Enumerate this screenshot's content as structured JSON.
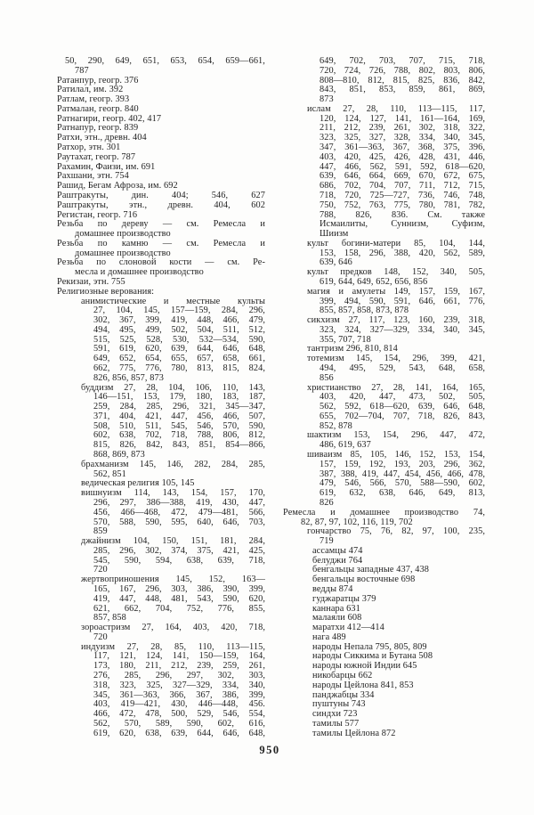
{
  "page_number": "950",
  "index": {
    "columns": [
      {
        "side": "left",
        "lines": [
          {
            "i": 5,
            "j": true,
            "t": "50, 290, 649, 651, 653, 654, 659—661,"
          },
          {
            "i": 1,
            "j": false,
            "t": "787"
          },
          {
            "i": 0,
            "j": false,
            "t": "Ратанпур, геогр. 376"
          },
          {
            "i": 0,
            "j": false,
            "t": "Ратилал, им. 392"
          },
          {
            "i": 0,
            "j": false,
            "t": "Ратлам, геогр. 393"
          },
          {
            "i": 0,
            "j": false,
            "t": "Ратмалан, геогр. 840"
          },
          {
            "i": 0,
            "j": false,
            "t": "Ратнагири, геогр. 402, 417"
          },
          {
            "i": 0,
            "j": false,
            "t": "Ратнапур, геогр. 839"
          },
          {
            "i": 0,
            "j": false,
            "t": "Ратхи, этн., древн. 404"
          },
          {
            "i": 0,
            "j": false,
            "t": "Ратхор, этн. 301"
          },
          {
            "i": 0,
            "j": false,
            "t": "Раутахат, геогр. 787"
          },
          {
            "i": 0,
            "j": false,
            "t": "Рахамин, Фаизи, им. 691"
          },
          {
            "i": 0,
            "j": false,
            "t": "Рахшани, этн. 754"
          },
          {
            "i": 0,
            "j": false,
            "t": "Рашид, Бегам Афроза, им. 692"
          },
          {
            "i": 0,
            "j": true,
            "t": "Раштракуты, дин. 404; 546, 627"
          },
          {
            "i": 0,
            "j": true,
            "t": "Раштракуты, этн., древн. 404, 602"
          },
          {
            "i": 0,
            "j": false,
            "t": "Регистан, геогр. 716"
          },
          {
            "i": 0,
            "j": true,
            "t": "Резьба по дереву — см. Ремесла и"
          },
          {
            "i": 1,
            "j": false,
            "t": "домашнее производство"
          },
          {
            "i": 0,
            "j": true,
            "t": "Резьба по камню — см. Ремесла и"
          },
          {
            "i": 1,
            "j": false,
            "t": "домашнее производство"
          },
          {
            "i": 0,
            "j": true,
            "t": "Резьба по слоновой кости — см. Ре-"
          },
          {
            "i": 1,
            "j": false,
            "t": "месла и домашнее производство"
          },
          {
            "i": 0,
            "j": false,
            "t": "Рекизаи, этн. 755"
          },
          {
            "i": 0,
            "j": false,
            "t": "Религиозные верования:"
          },
          {
            "i": 2,
            "j": true,
            "t": "анимистические и местные культы"
          },
          {
            "i": 3,
            "j": true,
            "t": "27, 104, 145, 157—159, 284, 296,"
          },
          {
            "i": 3,
            "j": true,
            "t": "302, 367, 399, 419, 448, 466, 479,"
          },
          {
            "i": 3,
            "j": true,
            "t": "494, 495, 499, 502, 504, 511, 512,"
          },
          {
            "i": 3,
            "j": true,
            "t": "515, 525, 528, 530, 532—534, 590,"
          },
          {
            "i": 3,
            "j": true,
            "t": "591, 619, 620, 639, 644, 646, 648,"
          },
          {
            "i": 3,
            "j": true,
            "t": "649, 652, 654, 655, 657, 658, 661,"
          },
          {
            "i": 3,
            "j": true,
            "t": "662, 775, 776, 780, 813, 815, 824,"
          },
          {
            "i": 3,
            "j": false,
            "t": "826, 856, 857, 873"
          },
          {
            "i": 2,
            "j": true,
            "t": "буддизм 27, 28, 104, 106, 110, 143,"
          },
          {
            "i": 3,
            "j": true,
            "t": "146—151, 153, 179, 180, 183, 187,"
          },
          {
            "i": 3,
            "j": true,
            "t": "259, 284, 285, 296, 321, 345—347,"
          },
          {
            "i": 3,
            "j": true,
            "t": "371, 404, 421, 447, 456, 466, 507,"
          },
          {
            "i": 3,
            "j": true,
            "t": "508, 510, 511, 545, 546, 570, 590,"
          },
          {
            "i": 3,
            "j": true,
            "t": "602, 638, 702, 718, 788, 806, 812,"
          },
          {
            "i": 3,
            "j": true,
            "t": "815, 826, 842, 843, 851, 854—866,"
          },
          {
            "i": 3,
            "j": false,
            "t": "868, 869, 873"
          },
          {
            "i": 2,
            "j": true,
            "t": "брахманизм 145, 146, 282, 284, 285,"
          },
          {
            "i": 3,
            "j": false,
            "t": "562, 851"
          },
          {
            "i": 2,
            "j": false,
            "t": "ведическая религия 105, 145"
          },
          {
            "i": 2,
            "j": true,
            "t": "вишнуизм 114, 143, 154, 157, 170,"
          },
          {
            "i": 3,
            "j": true,
            "t": "296, 297, 386—388, 419, 430, 447,"
          },
          {
            "i": 3,
            "j": true,
            "t": "456, 466—468, 472, 479—481, 566,"
          },
          {
            "i": 3,
            "j": true,
            "t": "570, 588, 590, 595, 640, 646, 703,"
          },
          {
            "i": 3,
            "j": false,
            "t": "859"
          },
          {
            "i": 2,
            "j": true,
            "t": "джайнизм 104, 150, 151, 181, 284,"
          },
          {
            "i": 3,
            "j": true,
            "t": "285, 296, 302, 374, 375, 421, 425,"
          },
          {
            "i": 3,
            "j": true,
            "t": "545, 590, 594, 638, 639, 718,"
          },
          {
            "i": 3,
            "j": false,
            "t": "720"
          },
          {
            "i": 2,
            "j": true,
            "t": "жертвоприношения 145, 152, 163—"
          },
          {
            "i": 3,
            "j": true,
            "t": "165, 167, 296, 303, 386, 390, 399,"
          },
          {
            "i": 3,
            "j": true,
            "t": "419, 447, 448, 481, 543, 590, 620,"
          },
          {
            "i": 3,
            "j": true,
            "t": "621, 662, 704, 752, 776, 855,"
          },
          {
            "i": 3,
            "j": false,
            "t": "857, 858"
          },
          {
            "i": 2,
            "j": true,
            "t": "зороастризм 27, 164, 403, 420, 718,"
          },
          {
            "i": 3,
            "j": false,
            "t": "720"
          },
          {
            "i": 2,
            "j": true,
            "t": "индуизм 27, 28, 85, 110, 113—115,"
          },
          {
            "i": 3,
            "j": true,
            "t": "117, 121, 124, 141, 150—159, 164,"
          },
          {
            "i": 3,
            "j": true,
            "t": "173, 180, 211, 212, 239, 259, 261,"
          },
          {
            "i": 3,
            "j": true,
            "t": "276, 285, 296, 297, 302, 303,"
          },
          {
            "i": 3,
            "j": true,
            "t": "318, 323, 325, 327—329, 334, 340,"
          },
          {
            "i": 3,
            "j": true,
            "t": "345, 361—363, 366, 367, 386, 399,"
          },
          {
            "i": 3,
            "j": true,
            "t": "403, 419—421, 430, 446—448, 456."
          },
          {
            "i": 3,
            "j": true,
            "t": "466, 472, 478, 500, 529, 546, 554,"
          },
          {
            "i": 3,
            "j": true,
            "t": "562, 570, 589, 590, 602, 616,"
          },
          {
            "i": 3,
            "j": true,
            "t": "619, 620, 638, 639, 644, 646, 648,"
          }
        ]
      },
      {
        "side": "right",
        "lines": [
          {
            "i": 3,
            "j": true,
            "t": "649, 702, 703, 707, 715, 718,"
          },
          {
            "i": 3,
            "j": true,
            "t": "720, 724, 726, 788, 802, 803, 806,"
          },
          {
            "i": 3,
            "j": true,
            "t": "808—810, 812, 815, 825, 836, 842,"
          },
          {
            "i": 3,
            "j": true,
            "t": "843, 851, 853, 859, 861, 869,"
          },
          {
            "i": 3,
            "j": false,
            "t": "873"
          },
          {
            "i": 2,
            "j": true,
            "t": "ислам 27, 28, 110, 113—115, 117,"
          },
          {
            "i": 3,
            "j": true,
            "t": "120, 124, 127, 141, 161—164, 169,"
          },
          {
            "i": 3,
            "j": true,
            "t": "211, 212, 239, 261, 302, 318, 322,"
          },
          {
            "i": 3,
            "j": true,
            "t": "323, 325, 327, 328, 334, 340, 345,"
          },
          {
            "i": 3,
            "j": true,
            "t": "347, 361—363, 367, 368, 375, 396,"
          },
          {
            "i": 3,
            "j": true,
            "t": "403, 420, 425, 426, 428, 431, 446,"
          },
          {
            "i": 3,
            "j": true,
            "t": "447, 466, 562, 591, 592, 618—620,"
          },
          {
            "i": 3,
            "j": true,
            "t": "639, 646, 664, 669, 670, 672, 675,"
          },
          {
            "i": 3,
            "j": true,
            "t": "686, 702, 704, 707, 711, 712, 715,"
          },
          {
            "i": 3,
            "j": true,
            "t": "718, 720, 725—727, 736, 746, 748,"
          },
          {
            "i": 3,
            "j": true,
            "t": "750, 752, 763, 775, 780, 781, 782,"
          },
          {
            "i": 3,
            "j": true,
            "t": "788, 826, 836. См. также"
          },
          {
            "i": 3,
            "j": true,
            "t": "Исмаилиты, Суннизм, Суфизм,"
          },
          {
            "i": 3,
            "j": false,
            "t": "Шиизм"
          },
          {
            "i": 2,
            "j": true,
            "t": "культ богини-матери 85, 104, 144,"
          },
          {
            "i": 3,
            "j": true,
            "t": "153, 158, 296, 388, 420, 562, 589,"
          },
          {
            "i": 3,
            "j": false,
            "t": "639, 646"
          },
          {
            "i": 2,
            "j": true,
            "t": "культ предков 148, 152, 340, 505,"
          },
          {
            "i": 3,
            "j": false,
            "t": "619, 644, 649, 652, 656, 856"
          },
          {
            "i": 2,
            "j": true,
            "t": "магия и амулеты 149, 157, 159, 167,"
          },
          {
            "i": 3,
            "j": true,
            "t": "399, 494, 590, 591, 646, 661, 776,"
          },
          {
            "i": 3,
            "j": false,
            "t": "855, 857, 858, 873, 878"
          },
          {
            "i": 2,
            "j": true,
            "t": "сикхизм 27, 117, 123, 160, 239, 318,"
          },
          {
            "i": 3,
            "j": true,
            "t": "323, 324, 327—329, 334, 340, 345,"
          },
          {
            "i": 3,
            "j": false,
            "t": "355, 707, 718"
          },
          {
            "i": 2,
            "j": false,
            "t": "тантризм 296, 810, 814"
          },
          {
            "i": 2,
            "j": true,
            "t": "тотемизм 145, 154, 296, 399, 421,"
          },
          {
            "i": 3,
            "j": true,
            "t": "494, 495, 529, 543, 648, 658,"
          },
          {
            "i": 3,
            "j": false,
            "t": "856"
          },
          {
            "i": 2,
            "j": true,
            "t": "христианство 27, 28, 141, 164, 165,"
          },
          {
            "i": 3,
            "j": true,
            "t": "403, 420, 447, 473, 502, 505,"
          },
          {
            "i": 3,
            "j": true,
            "t": "562, 592, 618—620, 639, 646, 648,"
          },
          {
            "i": 3,
            "j": true,
            "t": "655, 702—704, 707, 718, 826, 843,"
          },
          {
            "i": 3,
            "j": false,
            "t": "852, 878"
          },
          {
            "i": 2,
            "j": true,
            "t": "шактизм 153, 154, 296, 447, 472,"
          },
          {
            "i": 3,
            "j": false,
            "t": "486, 619, 637"
          },
          {
            "i": 2,
            "j": true,
            "t": "шиваизм 85, 105, 146, 152, 153, 154,"
          },
          {
            "i": 3,
            "j": true,
            "t": "157, 159, 192, 193, 203, 296, 362,"
          },
          {
            "i": 3,
            "j": true,
            "t": "387, 388, 419, 447, 454, 456, 466, 478,"
          },
          {
            "i": 3,
            "j": true,
            "t": "479, 546, 566, 570, 588—590, 602,"
          },
          {
            "i": 3,
            "j": true,
            "t": "619, 632, 638, 646, 649, 813,"
          },
          {
            "i": 3,
            "j": false,
            "t": "826"
          },
          {
            "i": 0,
            "j": true,
            "t": "Ремесла и домашнее производство 74,"
          },
          {
            "i": 1,
            "j": false,
            "t": "82, 87, 97, 102, 116, 119, 702"
          },
          {
            "i": 2,
            "j": true,
            "t": "гончарство 75, 76, 82, 97, 100, 235,"
          },
          {
            "i": 3,
            "j": false,
            "t": "719"
          },
          {
            "i": 4,
            "j": false,
            "t": "ассамцы 474"
          },
          {
            "i": 4,
            "j": false,
            "t": "белуджи 764"
          },
          {
            "i": 4,
            "j": false,
            "t": "бенгальцы западные 437, 438"
          },
          {
            "i": 4,
            "j": false,
            "t": "бенгальцы восточные 698"
          },
          {
            "i": 4,
            "j": false,
            "t": "ведды 874"
          },
          {
            "i": 4,
            "j": false,
            "t": "гуджаратцы 379"
          },
          {
            "i": 4,
            "j": false,
            "t": "каннара 631"
          },
          {
            "i": 4,
            "j": false,
            "t": "малаяли 608"
          },
          {
            "i": 4,
            "j": false,
            "t": "маратхи 412—414"
          },
          {
            "i": 4,
            "j": false,
            "t": "нага 489"
          },
          {
            "i": 4,
            "j": false,
            "t": "народы Непала 795, 805, 809"
          },
          {
            "i": 4,
            "j": false,
            "t": "народы Сиккима и Бутана 508"
          },
          {
            "i": 4,
            "j": false,
            "t": "народы южной Индии 645"
          },
          {
            "i": 4,
            "j": false,
            "t": "никобарцы 662"
          },
          {
            "i": 4,
            "j": false,
            "t": "народы Цейлона 841, 853"
          },
          {
            "i": 4,
            "j": false,
            "t": "панджабцы 334"
          },
          {
            "i": 4,
            "j": false,
            "t": "пуштуны 743"
          },
          {
            "i": 4,
            "j": false,
            "t": "синдхи 723"
          },
          {
            "i": 4,
            "j": false,
            "t": "тамилы 577"
          },
          {
            "i": 4,
            "j": false,
            "t": "тамилы Цейлона 872"
          }
        ]
      }
    ]
  }
}
